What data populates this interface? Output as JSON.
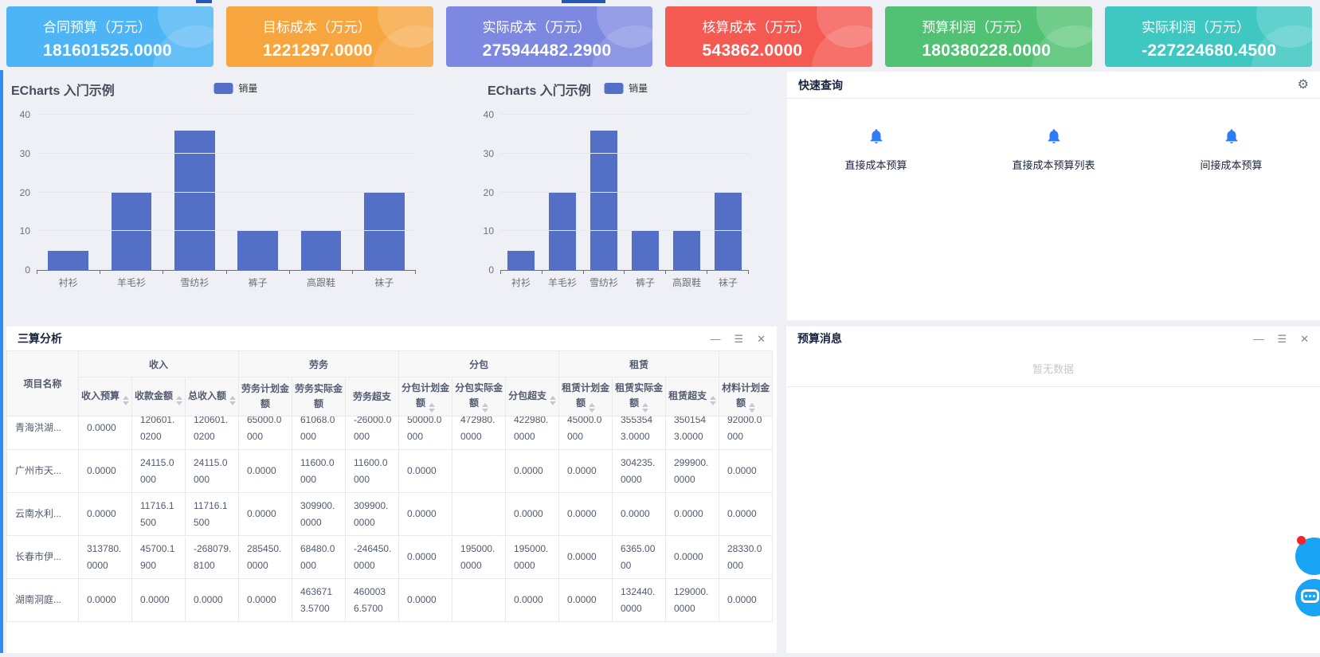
{
  "accents": {
    "left_bar_color": "#2d8cf0",
    "top_tab_color": "#2458b3"
  },
  "kpi": {
    "cards": [
      {
        "label": "合同预算（万元）",
        "value": "181601525.0000",
        "color": "#4db5f5"
      },
      {
        "label": "目标成本（万元）",
        "value": "1221297.0000",
        "color": "#f7a53f"
      },
      {
        "label": "实际成本（万元）",
        "value": "275944482.2900",
        "color": "#7d88e1"
      },
      {
        "label": "核算成本（万元）",
        "value": "543862.0000",
        "color": "#f55a52"
      },
      {
        "label": "预算利润（万元）",
        "value": "180380228.0000",
        "color": "#51c273"
      },
      {
        "label": "实际利润（万元）",
        "value": "-227224680.4500",
        "color": "#3fc7c2"
      }
    ]
  },
  "chart_data": [
    {
      "type": "bar",
      "title": "ECharts 入门示例",
      "legend": [
        {
          "name": "销量",
          "color": "#5470c6"
        }
      ],
      "categories": [
        "衬衫",
        "羊毛衫",
        "雪纺衫",
        "裤子",
        "高跟鞋",
        "袜子"
      ],
      "series": [
        {
          "name": "销量",
          "values": [
            5,
            20,
            36,
            10,
            10,
            20
          ]
        }
      ],
      "xlabel": "",
      "ylabel": "",
      "ylim": [
        0,
        40
      ],
      "yticks": [
        0,
        10,
        20,
        30,
        40
      ],
      "grid": true,
      "legend_position": "top-center"
    },
    {
      "type": "bar",
      "title": "ECharts 入门示例",
      "legend": [
        {
          "name": "销量",
          "color": "#5470c6"
        }
      ],
      "categories": [
        "衬衫",
        "羊毛衫",
        "雪纺衫",
        "裤子",
        "高跟鞋",
        "袜子"
      ],
      "series": [
        {
          "name": "销量",
          "values": [
            5,
            20,
            36,
            10,
            10,
            20
          ]
        }
      ],
      "xlabel": "",
      "ylabel": "",
      "ylim": [
        0,
        40
      ],
      "yticks": [
        0,
        10,
        20,
        30,
        40
      ],
      "grid": true,
      "legend_position": "top-center"
    }
  ],
  "quick_panel": {
    "title": "快速查询",
    "gear_icon": "⚙",
    "icon_color": "#2d7bf6",
    "items": [
      {
        "icon": "bell-icon",
        "label": "直接成本预算"
      },
      {
        "icon": "bell-icon",
        "label": "直接成本预算列表"
      },
      {
        "icon": "bell-icon",
        "label": "间接成本预算"
      }
    ]
  },
  "analysis_panel": {
    "title": "三算分析",
    "window_icons": {
      "minimize": "—",
      "menu": "☰",
      "close": "✕"
    },
    "table": {
      "groups": [
        {
          "label": "收入",
          "span": 3
        },
        {
          "label": "劳务",
          "span": 3
        },
        {
          "label": "分包",
          "span": 3
        },
        {
          "label": "租赁",
          "span": 3
        },
        {
          "label": "",
          "span": 1
        }
      ],
      "columns": [
        {
          "label": "项目名称",
          "sortable": false
        },
        {
          "label": "收入预算",
          "sortable": true
        },
        {
          "label": "收款金额",
          "sortable": true
        },
        {
          "label": "总收入额",
          "sortable": true
        },
        {
          "label": "劳务计划金额",
          "sortable": false
        },
        {
          "label": "劳务实际金额",
          "sortable": false
        },
        {
          "label": "劳务超支",
          "sortable": false
        },
        {
          "label": "分包计划金额",
          "sortable": true
        },
        {
          "label": "分包实际金额",
          "sortable": true
        },
        {
          "label": "分包超支",
          "sortable": true
        },
        {
          "label": "租赁计划金额",
          "sortable": true
        },
        {
          "label": "租赁实际金额",
          "sortable": true
        },
        {
          "label": "租赁超支",
          "sortable": true
        },
        {
          "label": "材料计划金额",
          "sortable": true
        }
      ],
      "rows": [
        {
          "name": "青海洪湖...",
          "values": [
            "0.0000",
            "120601.0200",
            "120601.0200",
            "65000.0000",
            "61068.0000",
            "-26000.0000",
            "50000.0000",
            "472980.0000",
            "422980.0000",
            "45000.0000",
            "3553543.0000",
            "3501543.0000",
            "92000.0000"
          ]
        },
        {
          "name": "广州市天...",
          "values": [
            "0.0000",
            "24115.0000",
            "24115.0000",
            "0.0000",
            "11600.0000",
            "11600.0000",
            "0.0000",
            "",
            "0.0000",
            "0.0000",
            "304235.0000",
            "299900.0000",
            "0.0000"
          ]
        },
        {
          "name": "云南水利...",
          "values": [
            "0.0000",
            "11716.1500",
            "11716.1500",
            "0.0000",
            "309900.0000",
            "309900.0000",
            "0.0000",
            "",
            "0.0000",
            "0.0000",
            "0.0000",
            "0.0000",
            "0.0000"
          ]
        },
        {
          "name": "长春市伊...",
          "values": [
            "313780.0000",
            "45700.1900",
            "-268079.8100",
            "285450.0000",
            "68480.0000",
            "-246450.0000",
            "0.0000",
            "195000.0000",
            "195000.0000",
            "0.0000",
            "6365.0000",
            "0.0000",
            "28330.0000"
          ]
        },
        {
          "name": "湖南洞庭...",
          "values": [
            "0.0000",
            "0.0000",
            "0.0000",
            "0.0000",
            "4636713.5700",
            "4600036.5700",
            "0.0000",
            "",
            "0.0000",
            "0.0000",
            "132440.0000",
            "129000.0000",
            "0.0000"
          ]
        }
      ]
    }
  },
  "message_panel": {
    "title": "预算消息",
    "window_icons": {
      "minimize": "—",
      "menu": "☰",
      "close": "✕"
    },
    "empty_text": "暂无数据"
  }
}
